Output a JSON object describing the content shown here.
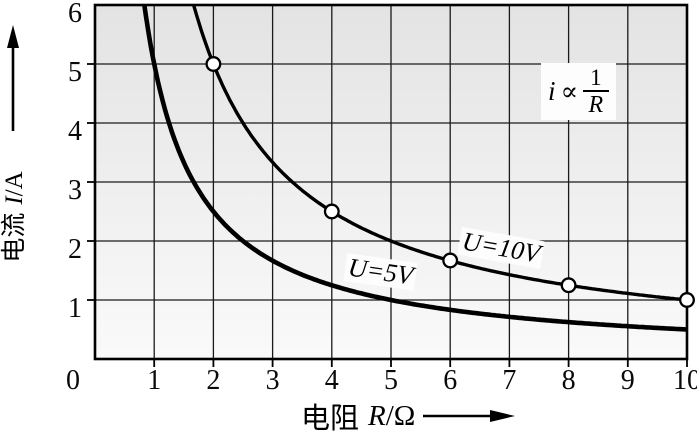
{
  "figure_title": "",
  "axes": {
    "y": {
      "label_cjk": "电流",
      "label_var": "I",
      "label_unit": "/A",
      "ticks": [
        {
          "value": 6,
          "label": "6"
        },
        {
          "value": 5,
          "label": "5"
        },
        {
          "value": 4,
          "label": "4"
        },
        {
          "value": 3,
          "label": "3"
        },
        {
          "value": 2,
          "label": "2"
        },
        {
          "value": 1,
          "label": "1"
        }
      ]
    },
    "x": {
      "label_cjk": "电阻",
      "label_var": "R",
      "label_unit": "/Ω",
      "ticks": [
        {
          "value": 1,
          "label": "1"
        },
        {
          "value": 2,
          "label": "2"
        },
        {
          "value": 3,
          "label": "3"
        },
        {
          "value": 4,
          "label": "4"
        },
        {
          "value": 5,
          "label": "5"
        },
        {
          "value": 6,
          "label": "6"
        },
        {
          "value": 7,
          "label": "7"
        },
        {
          "value": 8,
          "label": "8"
        },
        {
          "value": 9,
          "label": "9"
        },
        {
          "value": 10,
          "label": "10"
        }
      ]
    },
    "origin_label": "0"
  },
  "annotation": {
    "lhs": "i",
    "relation": "∝",
    "numerator": "1",
    "denominator": "R"
  },
  "colors": {
    "curve": "#000000",
    "grid": "#1a1a1a",
    "plot_bg_top": "#e3e3e3",
    "plot_bg_bottom": "#fafafa",
    "marker_fill": "#ffffff"
  },
  "chart_data": {
    "type": "line",
    "title": "",
    "xlabel": "电阻 R/Ω",
    "ylabel": "电流 I/A",
    "xlim": [
      0,
      10
    ],
    "ylim": [
      0,
      6
    ],
    "x_ticks": [
      0,
      1,
      2,
      3,
      4,
      5,
      6,
      7,
      8,
      9,
      10
    ],
    "y_ticks": [
      0,
      1,
      2,
      3,
      4,
      5,
      6
    ],
    "grid": true,
    "annotation": "i ∝ 1/R",
    "series": [
      {
        "name": "U=10V",
        "voltage": 10,
        "relation": "I = U/R (hyperbola)",
        "x": [
          1.67,
          2,
          2.5,
          3,
          4,
          5,
          6,
          7,
          8,
          9,
          10
        ],
        "y": [
          6,
          5,
          4,
          3.33,
          2.5,
          2,
          1.67,
          1.43,
          1.25,
          1.11,
          1
        ],
        "marked_points": {
          "x": [
            2,
            4,
            6,
            8,
            10
          ],
          "y": [
            5,
            2.5,
            1.67,
            1.25,
            1
          ]
        },
        "stroke_width": 3.4
      },
      {
        "name": "U=5V",
        "voltage": 5,
        "relation": "I = U/R (hyperbola)",
        "x": [
          0.83,
          1,
          1.5,
          2,
          3,
          4,
          5,
          6,
          7,
          8,
          9,
          10
        ],
        "y": [
          6,
          5,
          3.33,
          2.5,
          1.67,
          1.25,
          1,
          0.83,
          0.71,
          0.63,
          0.56,
          0.5
        ],
        "marked_points": {
          "x": [],
          "y": []
        },
        "stroke_width": 4.6
      }
    ]
  }
}
